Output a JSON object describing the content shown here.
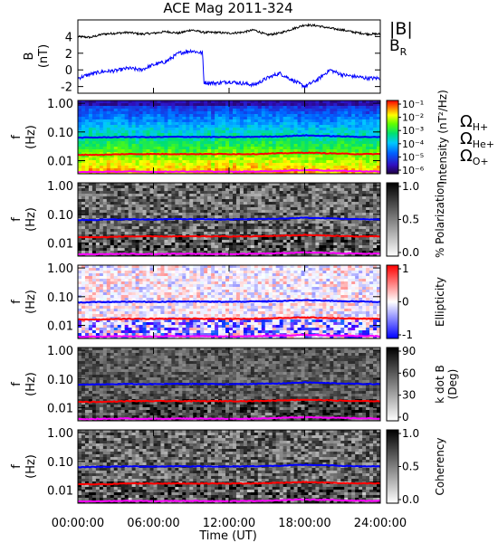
{
  "title": "ACE Mag 2011-324",
  "xaxis": {
    "label": "Time (UT)",
    "ticks": [
      "00:00:00",
      "06:00:00",
      "12:00:00",
      "18:00:00",
      "24:00:00"
    ],
    "range_hours": [
      0,
      24
    ]
  },
  "legend": {
    "B_total": "|B|",
    "B_R": "B",
    "B_R_sub": "R",
    "omega": "Ω",
    "h_plus": "H+",
    "he_plus": "He+",
    "o_plus": "O+"
  },
  "colors": {
    "B_total": "#000000",
    "B_R": "#0000ff",
    "h_plus": "#0000ff",
    "he_plus": "#ff0000",
    "o_plus": "#ff00ff"
  },
  "chart_data": [
    {
      "type": "line",
      "ylabel": "B",
      "yunit": "(nT)",
      "ylim": [
        -2.8,
        6.0
      ],
      "yticks": [
        -2,
        0,
        2,
        4
      ],
      "series": [
        {
          "name": "|B|",
          "x_hours": [
            0,
            1,
            2,
            3,
            4,
            5,
            6,
            7,
            8,
            9,
            10,
            11,
            12,
            13,
            14,
            15,
            16,
            17,
            18,
            19,
            20,
            21,
            22,
            23,
            24
          ],
          "values": [
            4.0,
            3.9,
            4.3,
            4.4,
            4.5,
            4.3,
            4.4,
            4.6,
            4.4,
            4.8,
            4.5,
            4.5,
            4.4,
            4.5,
            4.8,
            4.2,
            4.4,
            4.9,
            5.4,
            5.3,
            5.0,
            4.8,
            4.5,
            4.3,
            4.3
          ]
        },
        {
          "name": "B_R",
          "x_hours": [
            0,
            1,
            2,
            3,
            4,
            5,
            6,
            7,
            8,
            9,
            9.9,
            10,
            11,
            12,
            13,
            14,
            15,
            16,
            17,
            18,
            19,
            20,
            21,
            22,
            23,
            24
          ],
          "values": [
            -1.0,
            -0.5,
            -0.2,
            -0.1,
            0.2,
            0.0,
            0.6,
            1.0,
            2.0,
            2.3,
            2.0,
            -1.5,
            -1.6,
            -1.4,
            -1.6,
            -1.8,
            -1.0,
            -0.4,
            -1.2,
            -2.0,
            -1.2,
            0.0,
            -0.6,
            -0.8,
            -1.0,
            -1.0
          ]
        }
      ]
    },
    {
      "type": "heatmap",
      "ylabel": "f",
      "yunit": "(Hz)",
      "yticks": [
        "1.00",
        "0.10",
        "0.01"
      ],
      "colorbar": {
        "label": "Intensity (nT²/Hz)",
        "ticks": [
          "10⁻¹",
          "10⁻²",
          "10⁻³",
          "10⁻⁴",
          "10⁻⁵",
          "10⁻⁶"
        ]
      }
    },
    {
      "type": "heatmap",
      "ylabel": "f",
      "yunit": "(Hz)",
      "yticks": [
        "1.00",
        "0.10",
        "0.01"
      ],
      "colorbar": {
        "label": "% Polarization",
        "ticks": [
          "1.0",
          "0.5",
          "0.0"
        ]
      }
    },
    {
      "type": "heatmap",
      "ylabel": "f",
      "yunit": "(Hz)",
      "yticks": [
        "1.00",
        "0.10",
        "0.01"
      ],
      "colorbar": {
        "label": "Ellipticity",
        "ticks": [
          "1",
          "0",
          "-1"
        ]
      }
    },
    {
      "type": "heatmap",
      "ylabel": "f",
      "yunit": "(Hz)",
      "yticks": [
        "1.00",
        "0.10",
        "0.01"
      ],
      "colorbar": {
        "label": "k dot B",
        "label2": "(Deg)",
        "ticks": [
          "90",
          "60",
          "30",
          "0"
        ]
      }
    },
    {
      "type": "heatmap",
      "ylabel": "f",
      "yunit": "(Hz)",
      "yticks": [
        "1.00",
        "0.10",
        "0.01"
      ],
      "colorbar": {
        "label": "Coherency",
        "ticks": [
          "1.0",
          "0.5",
          "0.0"
        ]
      }
    }
  ],
  "gyrofrequency_lines": {
    "x_hours": [
      0,
      2,
      4,
      6,
      8,
      10,
      12,
      14,
      16,
      18,
      20,
      22,
      24
    ],
    "H+_hz": [
      0.063,
      0.065,
      0.067,
      0.066,
      0.068,
      0.067,
      0.066,
      0.068,
      0.07,
      0.076,
      0.072,
      0.068,
      0.066
    ],
    "He+_hz": [
      0.016,
      0.016,
      0.017,
      0.017,
      0.017,
      0.017,
      0.017,
      0.017,
      0.018,
      0.019,
      0.018,
      0.017,
      0.017
    ],
    "O+_hz": [
      0.004,
      0.0041,
      0.0042,
      0.0041,
      0.0042,
      0.0042,
      0.0041,
      0.0042,
      0.0044,
      0.0047,
      0.0045,
      0.0043,
      0.0042
    ]
  }
}
